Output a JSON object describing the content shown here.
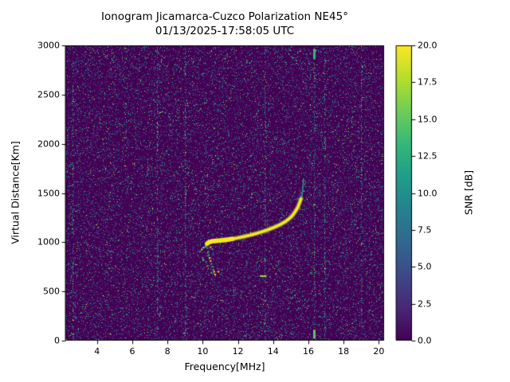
{
  "chart_data": {
    "type": "heatmap",
    "title": "Ionogram Jicamarca-Cuzco Polarization NE45°",
    "subtitle": "01/13/2025-17:58:05 UTC",
    "xlabel": "Frequency[MHz]",
    "ylabel": "Virtual Distance[Km]",
    "xlim": [
      2.2,
      20.3
    ],
    "ylim": [
      0,
      3000
    ],
    "x_ticks": [
      4,
      6,
      8,
      10,
      12,
      14,
      16,
      18,
      20
    ],
    "x_tick_labels": [
      "4",
      "6",
      "8",
      "10",
      "12",
      "14",
      "16",
      "18",
      "20"
    ],
    "y_ticks": [
      0,
      500,
      1000,
      1500,
      2000,
      2500,
      3000
    ],
    "y_tick_labels": [
      "0",
      "500",
      "1000",
      "1500",
      "2000",
      "2500",
      "3000"
    ],
    "heatmap_bg": "#440154",
    "colorbar": {
      "label": "SNR [dB]",
      "min": 0,
      "max": 20,
      "ticks": [
        0,
        2.5,
        5,
        7.5,
        10,
        12.5,
        15,
        17.5,
        20
      ],
      "tick_labels": [
        "0.0",
        "2.5",
        "5.0",
        "7.5",
        "10.0",
        "12.5",
        "15.0",
        "17.5",
        "20.0"
      ],
      "stops": [
        "#440154",
        "#482878",
        "#3e4989",
        "#31688e",
        "#26828e",
        "#1f9e89",
        "#35b779",
        "#6ece58",
        "#b5de2b",
        "#fde725"
      ]
    },
    "noise": {
      "seed": 1337,
      "density": 0.14,
      "band_density": 0.28,
      "band_freqs": [
        2.6,
        7.4,
        9.0,
        13.5,
        16.3,
        16.9,
        19.0
      ],
      "colors": [
        {
          "c": "#46327e",
          "w": 0.3
        },
        {
          "c": "#3d4e8a",
          "w": 0.22
        },
        {
          "c": "#2d6e8e",
          "w": 0.18
        },
        {
          "c": "#21918c",
          "w": 0.14
        },
        {
          "c": "#27ad81",
          "w": 0.08
        },
        {
          "c": "#5ec962",
          "w": 0.05
        },
        {
          "c": "#a0da39",
          "w": 0.02
        },
        {
          "c": "#fde725",
          "w": 0.01
        }
      ]
    },
    "main_trace": {
      "color": "#f8e621",
      "glow_color": "rgba(160,218,57,0.45)",
      "points": [
        [
          10.25,
          985
        ],
        [
          10.35,
          1000
        ],
        [
          10.5,
          1008
        ],
        [
          10.7,
          1012
        ],
        [
          10.95,
          1016
        ],
        [
          11.2,
          1021
        ],
        [
          11.45,
          1027
        ],
        [
          11.7,
          1034
        ],
        [
          11.95,
          1042
        ],
        [
          12.2,
          1051
        ],
        [
          12.45,
          1061
        ],
        [
          12.7,
          1072
        ],
        [
          12.95,
          1084
        ],
        [
          13.2,
          1097
        ],
        [
          13.45,
          1111
        ],
        [
          13.7,
          1126
        ],
        [
          13.95,
          1143
        ],
        [
          14.2,
          1162
        ],
        [
          14.45,
          1184
        ],
        [
          14.7,
          1210
        ],
        [
          14.9,
          1238
        ],
        [
          15.1,
          1272
        ],
        [
          15.25,
          1310
        ],
        [
          15.4,
          1355
        ],
        [
          15.5,
          1400
        ],
        [
          15.58,
          1440
        ]
      ]
    },
    "trace_tail": {
      "color": "#26828e",
      "points": [
        [
          15.6,
          1430
        ],
        [
          15.66,
          1510
        ],
        [
          15.7,
          1580
        ],
        [
          15.73,
          1640
        ]
      ]
    },
    "echo_scatter": {
      "colors": [
        "#21918c",
        "#35b779",
        "#a0da39",
        "#fde725"
      ],
      "points": [
        [
          9.85,
          905
        ],
        [
          9.95,
          925
        ],
        [
          10.05,
          945
        ],
        [
          10.15,
          965
        ],
        [
          10.2,
          960
        ],
        [
          10.25,
          940
        ],
        [
          10.3,
          900
        ],
        [
          10.35,
          870
        ],
        [
          10.4,
          840
        ],
        [
          10.45,
          810
        ],
        [
          10.5,
          780
        ],
        [
          10.55,
          750
        ],
        [
          10.6,
          720
        ],
        [
          10.5,
          690
        ],
        [
          10.65,
          700
        ],
        [
          10.7,
          670
        ],
        [
          10.3,
          760
        ],
        [
          10.2,
          800
        ],
        [
          10.0,
          840
        ],
        [
          10.05,
          820
        ],
        [
          10.9,
          700
        ],
        [
          11.1,
          720
        ],
        [
          10.45,
          950
        ],
        [
          10.55,
          930
        ]
      ]
    },
    "h_segments": [
      {
        "f1": 13.25,
        "f2": 13.62,
        "km": 652,
        "color": "#a0da39"
      }
    ],
    "v_segments": [
      {
        "f": 16.3,
        "km1": 20,
        "km2": 110,
        "color": "#5ec962"
      },
      {
        "f": 16.3,
        "km1": 2860,
        "km2": 2960,
        "color": "#35b779"
      }
    ]
  }
}
